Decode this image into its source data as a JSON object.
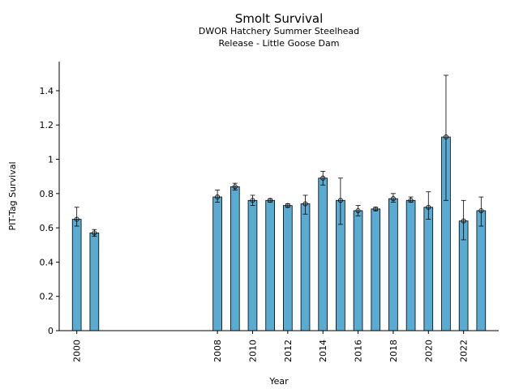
{
  "chart_data": {
    "type": "bar",
    "title": "Smolt Survival",
    "subtitle_lines": [
      "DWOR Hatchery Summer Steelhead",
      "Release - Little Goose Dam"
    ],
    "xlabel": "Year",
    "ylabel": "PIT-Tag Survival",
    "xlim": [
      1999,
      2024
    ],
    "ylim": [
      0,
      1.57
    ],
    "xticks": [
      2000,
      2008,
      2010,
      2012,
      2014,
      2016,
      2018,
      2020,
      2022
    ],
    "yticks": [
      0,
      0.2,
      0.4,
      0.6,
      0.8,
      1,
      1.2,
      1.4
    ],
    "ytick_labels": [
      "0",
      "0.2",
      "0.4",
      "0.6",
      "0.8",
      "1",
      "1.2",
      "1.4"
    ],
    "bar_color": "#5aabd2",
    "grid": false,
    "series": [
      {
        "x": [
          2000,
          2001,
          2008,
          2009,
          2010,
          2011,
          2012,
          2013,
          2014,
          2015,
          2016,
          2017,
          2018,
          2019,
          2020,
          2021,
          2022,
          2023
        ],
        "values": [
          0.65,
          0.57,
          0.78,
          0.84,
          0.76,
          0.76,
          0.73,
          0.74,
          0.89,
          0.76,
          0.7,
          0.71,
          0.77,
          0.76,
          0.72,
          1.13,
          0.64,
          0.7
        ],
        "err_low": [
          0.61,
          0.55,
          0.75,
          0.82,
          0.73,
          0.75,
          0.72,
          0.68,
          0.85,
          0.62,
          0.67,
          0.7,
          0.75,
          0.75,
          0.65,
          0.76,
          0.53,
          0.61
        ],
        "err_high": [
          0.72,
          0.59,
          0.82,
          0.86,
          0.79,
          0.77,
          0.74,
          0.79,
          0.93,
          0.89,
          0.73,
          0.72,
          0.8,
          0.78,
          0.81,
          1.49,
          0.76,
          0.78
        ]
      }
    ]
  }
}
